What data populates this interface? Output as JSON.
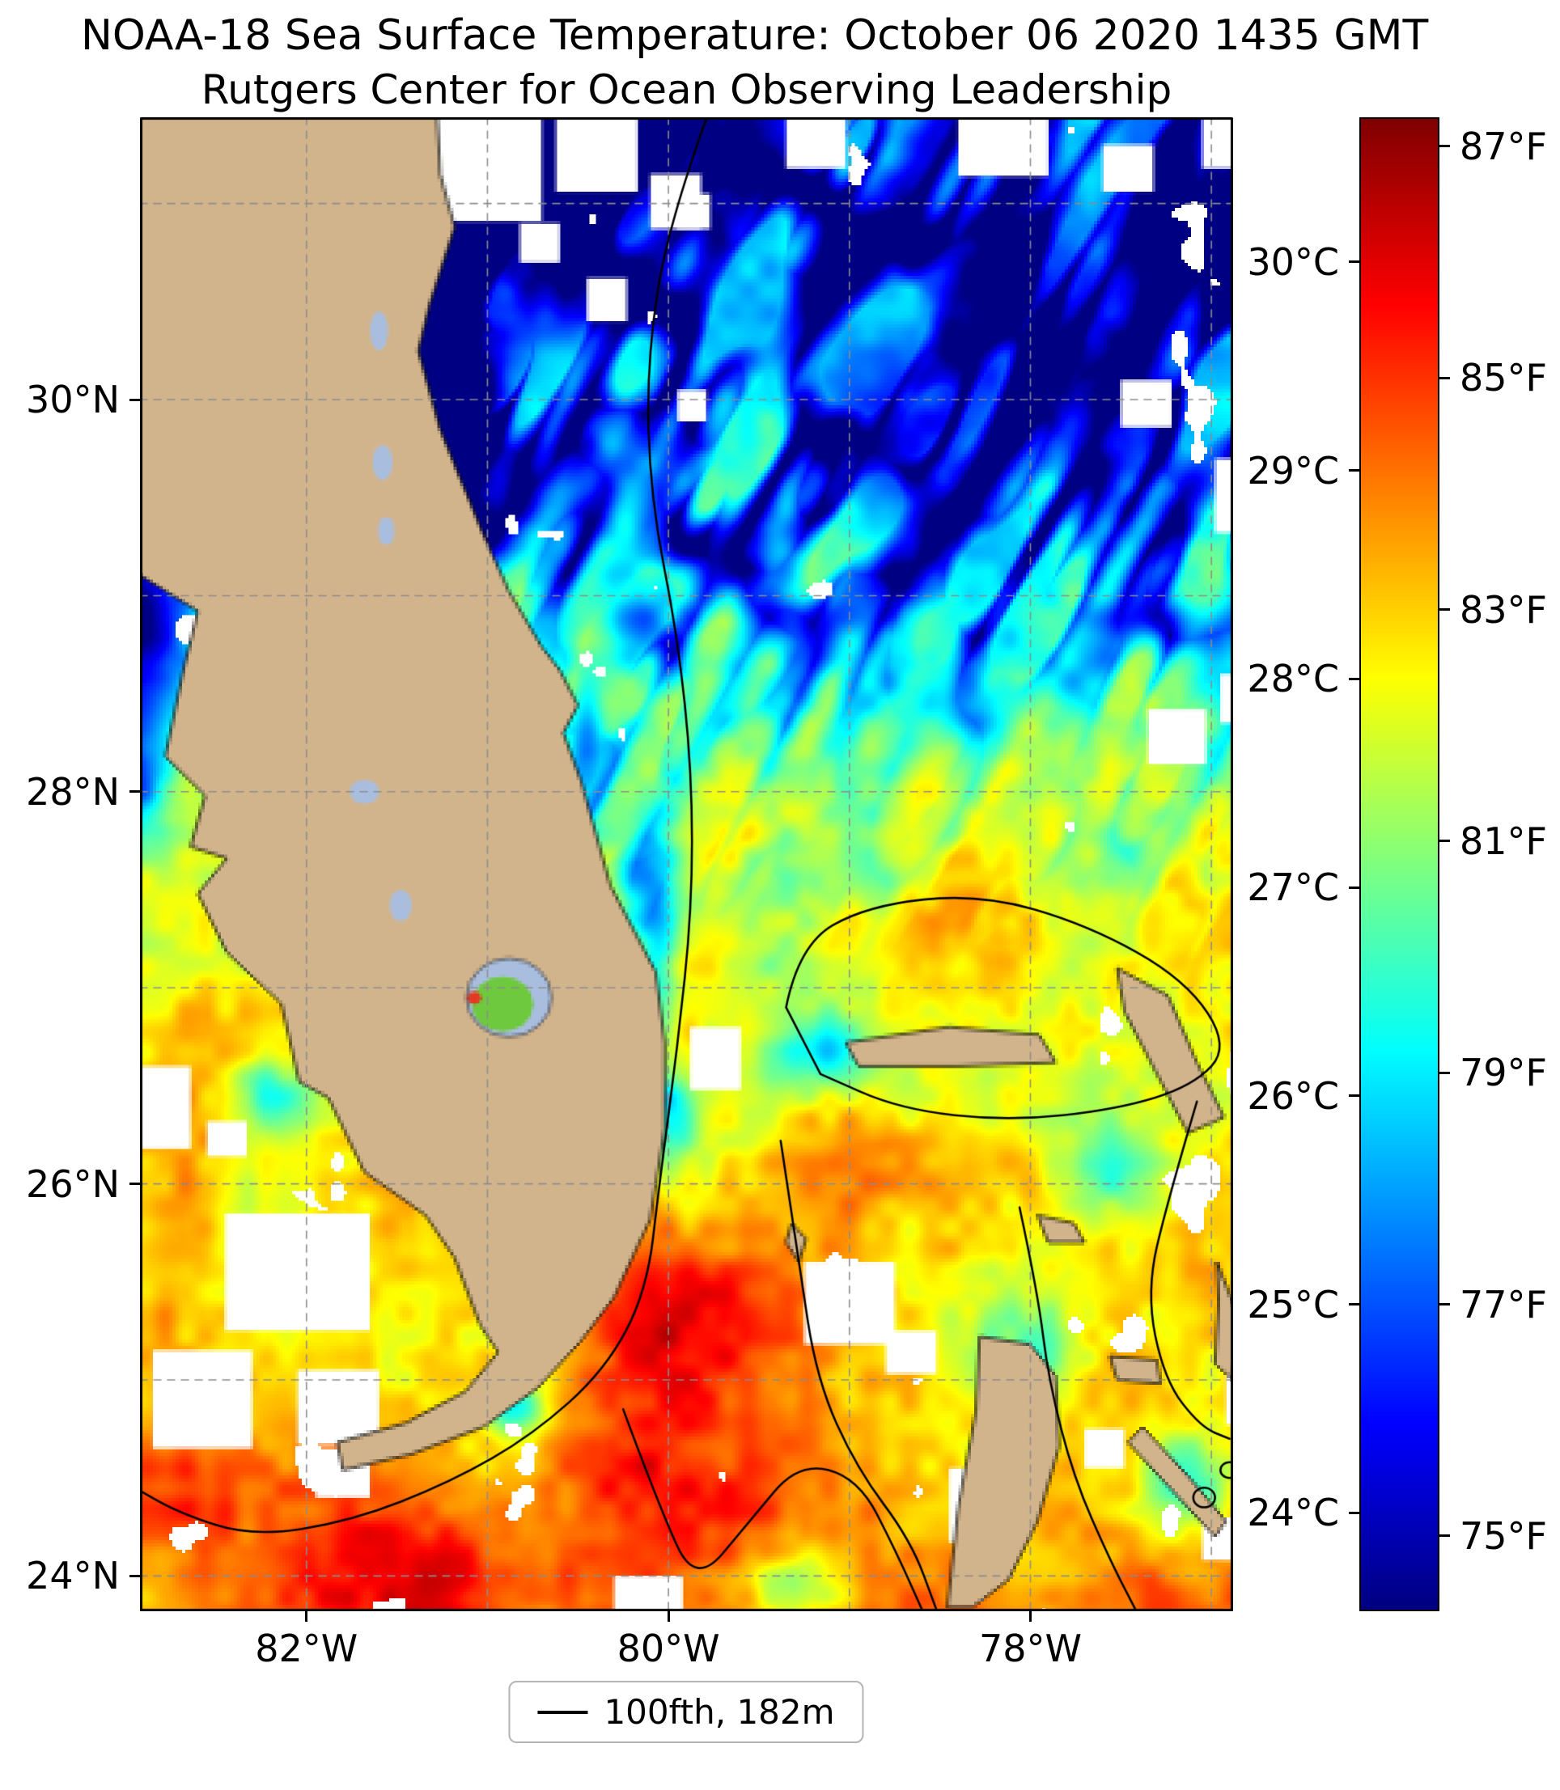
{
  "header": {
    "title": "NOAA-18 Sea Surface Temperature: October 06 2020 1435 GMT",
    "subtitle": "Rutgers Center for Ocean Observing Leadership"
  },
  "axes": {
    "x_ticks": [
      {
        "value": -82,
        "label": "82°W"
      },
      {
        "value": -80,
        "label": "80°W"
      },
      {
        "value": -78,
        "label": "78°W"
      }
    ],
    "y_ticks": [
      {
        "value": 30,
        "label": "30°N"
      },
      {
        "value": 28,
        "label": "28°N"
      },
      {
        "value": 26,
        "label": "26°N"
      },
      {
        "value": 24,
        "label": "24°N"
      }
    ],
    "grid_lons": [
      -82,
      -81,
      -80,
      -79,
      -78,
      -77
    ],
    "grid_lats": [
      24,
      25,
      26,
      27,
      28,
      29,
      30,
      31
    ]
  },
  "colorbar": {
    "top_f": 87.25,
    "bottom_f": 74.35,
    "celsius_ticks": [
      {
        "value": 30,
        "label": "30°C"
      },
      {
        "value": 29,
        "label": "29°C"
      },
      {
        "value": 28,
        "label": "28°C"
      },
      {
        "value": 27,
        "label": "27°C"
      },
      {
        "value": 26,
        "label": "26°C"
      },
      {
        "value": 25,
        "label": "25°C"
      },
      {
        "value": 24,
        "label": "24°C"
      }
    ],
    "fahrenheit_ticks": [
      {
        "value": 87,
        "label": "87°F"
      },
      {
        "value": 85,
        "label": "85°F"
      },
      {
        "value": 83,
        "label": "83°F"
      },
      {
        "value": 81,
        "label": "81°F"
      },
      {
        "value": 79,
        "label": "79°F"
      },
      {
        "value": 77,
        "label": "77°F"
      },
      {
        "value": 75,
        "label": "75°F"
      }
    ]
  },
  "legend": {
    "label": "100fth, 182m"
  },
  "chart_data": {
    "type": "heatmap",
    "variable": "sea surface temperature",
    "colormap": "jet",
    "units": [
      "°C",
      "°F"
    ],
    "temp_range_f": [
      74.35,
      87.25
    ],
    "extent": {
      "lon_min": -82.92,
      "lon_max": -76.88,
      "lat_min": 23.82,
      "lat_max": 31.44
    },
    "field": {
      "base_f": 81.6,
      "ref_lat": 27.5,
      "south_gradient_f_per_deg": 0.62,
      "noise_amp_f": 3.0,
      "speckle_amp_f": 1.2,
      "streak_amp_f": 7.2
    },
    "features": {
      "cold_spots": [
        [
          -81.0,
          31.2,
          0.4,
          0.28,
          -8
        ],
        [
          -80.35,
          31.3,
          0.45,
          0.3,
          -7
        ],
        [
          -81.45,
          30.55,
          0.3,
          0.35,
          -7
        ],
        [
          -81.15,
          30.1,
          0.28,
          0.3,
          -5.5
        ],
        [
          -80.6,
          30.7,
          0.35,
          0.35,
          -5
        ],
        [
          -81.1,
          29.7,
          0.18,
          0.5,
          -4.5
        ],
        [
          -82.95,
          28.85,
          0.3,
          0.45,
          -6
        ],
        [
          -82.95,
          28.1,
          0.18,
          0.3,
          -4
        ],
        [
          -80.15,
          28.85,
          0.22,
          0.25,
          -4
        ],
        [
          -80.45,
          28.15,
          0.12,
          0.35,
          -3
        ],
        [
          -80.08,
          27.55,
          0.18,
          0.3,
          -3.5
        ],
        [
          -80.05,
          27.0,
          0.1,
          0.4,
          -2.5
        ],
        [
          -78.7,
          29.7,
          0.55,
          0.5,
          -3
        ],
        [
          -77.8,
          30.4,
          0.5,
          0.45,
          -3
        ],
        [
          -76.95,
          30.95,
          0.35,
          0.4,
          -4.5
        ],
        [
          -78.15,
          28.9,
          0.45,
          0.45,
          -2.5
        ],
        [
          -78.0,
          25.15,
          0.3,
          0.4,
          -3
        ],
        [
          -77.15,
          24.45,
          0.3,
          0.3,
          -3.5
        ],
        [
          -79.15,
          26.7,
          0.25,
          0.18,
          -3
        ],
        [
          -80.85,
          24.85,
          0.18,
          0.12,
          -3
        ],
        [
          -82.2,
          26.45,
          0.25,
          0.2,
          -2.5
        ],
        [
          -80.0,
          26.35,
          0.15,
          0.25,
          -3.5
        ],
        [
          -79.3,
          23.95,
          0.3,
          0.2,
          -3
        ],
        [
          -77.55,
          26.05,
          0.3,
          0.25,
          -2.5
        ]
      ],
      "warm_spots": [
        [
          -79.95,
          25.35,
          0.55,
          0.55,
          2.6
        ],
        [
          -80.1,
          24.45,
          0.5,
          0.4,
          2.4
        ],
        [
          -79.4,
          27.9,
          0.5,
          0.4,
          1.8
        ],
        [
          -78.2,
          27.35,
          0.9,
          0.5,
          1.4
        ],
        [
          -82.4,
          24.45,
          0.65,
          0.35,
          2.0
        ],
        [
          -81.3,
          24.0,
          0.7,
          0.3,
          2.2
        ],
        [
          -76.95,
          27.7,
          0.35,
          0.5,
          1.2
        ],
        [
          -82.7,
          26.1,
          0.3,
          0.5,
          1.2
        ],
        [
          -79.0,
          26.1,
          0.4,
          0.3,
          1.5
        ]
      ],
      "cloud_rects": [
        [
          -81.5,
          31.46,
          0.8,
          0.55
        ],
        [
          -80.62,
          31.46,
          0.45,
          0.4
        ],
        [
          -80.1,
          31.15,
          0.28,
          0.28
        ],
        [
          -79.35,
          31.46,
          0.33,
          0.28
        ],
        [
          -78.4,
          31.46,
          0.5,
          0.32
        ],
        [
          -77.6,
          31.3,
          0.28,
          0.24
        ],
        [
          -77.05,
          31.46,
          0.3,
          0.28
        ],
        [
          -80.45,
          30.62,
          0.22,
          0.22
        ],
        [
          -79.95,
          30.05,
          0.16,
          0.16
        ],
        [
          -77.5,
          30.1,
          0.28,
          0.24
        ],
        [
          -76.98,
          29.7,
          0.22,
          0.38
        ],
        [
          -77.35,
          28.42,
          0.32,
          0.28
        ],
        [
          -76.95,
          28.6,
          0.18,
          0.25
        ],
        [
          -79.88,
          26.8,
          0.28,
          0.32
        ],
        [
          -79.25,
          25.6,
          0.5,
          0.42
        ],
        [
          -78.8,
          25.25,
          0.28,
          0.22
        ],
        [
          -82.45,
          25.85,
          0.8,
          0.6
        ],
        [
          -82.85,
          25.15,
          0.55,
          0.5
        ],
        [
          -82.05,
          25.05,
          0.45,
          0.38
        ],
        [
          -82.92,
          26.6,
          0.28,
          0.42
        ],
        [
          -82.55,
          26.32,
          0.22,
          0.18
        ],
        [
          -78.45,
          24.55,
          0.42,
          0.38
        ],
        [
          -77.05,
          24.3,
          0.28,
          0.22
        ],
        [
          -76.92,
          25.05,
          0.18,
          0.28
        ],
        [
          -80.3,
          24.0,
          0.38,
          0.2
        ],
        [
          -79.95,
          31.05,
          0.18,
          0.18
        ],
        [
          -80.82,
          30.9,
          0.22,
          0.2
        ],
        [
          -77.7,
          24.75,
          0.22,
          0.2
        ],
        [
          -80.5,
          26.75,
          0.18,
          0.2
        ],
        [
          -80.35,
          26.1,
          0.15,
          0.15
        ],
        [
          -81.95,
          24.65,
          0.3,
          0.25
        ]
      ],
      "cloud_noise_threshold": 0.81,
      "cloud_noise_south_bias": 0.09
    },
    "land": {
      "color": "#d2b48c",
      "lake_color": "#a9bede",
      "florida": [
        [
          -82.95,
          31.5
        ],
        [
          -81.28,
          31.5
        ],
        [
          -81.26,
          31.15
        ],
        [
          -81.18,
          30.88
        ],
        [
          -81.32,
          30.48
        ],
        [
          -81.38,
          30.25
        ],
        [
          -81.26,
          29.85
        ],
        [
          -81.03,
          29.33
        ],
        [
          -80.88,
          29.02
        ],
        [
          -80.7,
          28.74
        ],
        [
          -80.6,
          28.62
        ],
        [
          -80.5,
          28.44
        ],
        [
          -80.58,
          28.3
        ],
        [
          -80.48,
          28.05
        ],
        [
          -80.32,
          27.52
        ],
        [
          -80.07,
          27.08
        ],
        [
          -80.02,
          26.72
        ],
        [
          -80.02,
          26.28
        ],
        [
          -80.1,
          25.82
        ],
        [
          -80.3,
          25.42
        ],
        [
          -80.48,
          25.2
        ],
        [
          -80.72,
          24.96
        ],
        [
          -81.02,
          24.76
        ],
        [
          -81.42,
          24.62
        ],
        [
          -81.8,
          24.54
        ],
        [
          -81.83,
          24.68
        ],
        [
          -81.45,
          24.78
        ],
        [
          -81.12,
          24.94
        ],
        [
          -80.94,
          25.14
        ],
        [
          -81.04,
          25.28
        ],
        [
          -81.18,
          25.62
        ],
        [
          -81.34,
          25.84
        ],
        [
          -81.68,
          26.06
        ],
        [
          -81.88,
          26.44
        ],
        [
          -82.04,
          26.52
        ],
        [
          -82.14,
          26.92
        ],
        [
          -82.44,
          27.18
        ],
        [
          -82.6,
          27.48
        ],
        [
          -82.44,
          27.66
        ],
        [
          -82.64,
          27.72
        ],
        [
          -82.56,
          27.98
        ],
        [
          -82.78,
          28.18
        ],
        [
          -82.68,
          28.62
        ],
        [
          -82.6,
          28.92
        ],
        [
          -82.95,
          29.12
        ]
      ],
      "islands": [
        [
          [
            -79.02,
            26.72
          ],
          [
            -78.45,
            26.8
          ],
          [
            -77.95,
            26.76
          ],
          [
            -77.86,
            26.62
          ],
          [
            -78.4,
            26.6
          ],
          [
            -78.95,
            26.6
          ]
        ],
        [
          [
            -77.52,
            27.1
          ],
          [
            -77.24,
            26.96
          ],
          [
            -77.08,
            26.62
          ],
          [
            -76.93,
            26.34
          ],
          [
            -77.13,
            26.26
          ],
          [
            -77.3,
            26.56
          ],
          [
            -77.48,
            26.88
          ]
        ],
        [
          [
            -77.96,
            25.84
          ],
          [
            -77.76,
            25.8
          ],
          [
            -77.7,
            25.7
          ],
          [
            -77.9,
            25.7
          ]
        ],
        [
          [
            -79.32,
            25.8
          ],
          [
            -79.24,
            25.72
          ],
          [
            -79.28,
            25.6
          ],
          [
            -79.35,
            25.7
          ]
        ],
        [
          [
            -77.56,
            25.12
          ],
          [
            -77.3,
            25.1
          ],
          [
            -77.28,
            24.98
          ],
          [
            -77.52,
            25.0
          ]
        ],
        [
          [
            -76.97,
            25.6
          ],
          [
            -76.85,
            25.32
          ],
          [
            -76.88,
            25.0
          ],
          [
            -76.98,
            25.08
          ],
          [
            -76.96,
            25.4
          ]
        ],
        [
          [
            -78.28,
            25.22
          ],
          [
            -78.0,
            25.18
          ],
          [
            -77.86,
            25.02
          ],
          [
            -77.84,
            24.66
          ],
          [
            -77.96,
            24.28
          ],
          [
            -78.12,
            23.98
          ],
          [
            -78.32,
            23.84
          ],
          [
            -78.46,
            23.84
          ],
          [
            -78.4,
            24.34
          ],
          [
            -78.3,
            24.84
          ]
        ],
        [
          [
            -77.46,
            24.68
          ],
          [
            -77.18,
            24.4
          ],
          [
            -76.98,
            24.2
          ],
          [
            -76.92,
            24.28
          ],
          [
            -77.12,
            24.5
          ],
          [
            -77.38,
            24.76
          ]
        ]
      ],
      "lakes": [
        [
          -81.6,
          30.35,
          0.05,
          0.1
        ],
        [
          -81.58,
          29.68,
          0.055,
          0.09
        ],
        [
          -81.56,
          29.33,
          0.045,
          0.07
        ],
        [
          -81.68,
          28.0,
          0.08,
          0.06
        ],
        [
          -81.48,
          27.42,
          0.06,
          0.08
        ]
      ],
      "okeechobee": {
        "lon": -80.88,
        "lat": 26.95,
        "rx": 0.235,
        "ry": 0.2
      }
    },
    "contours": [
      {
        "points": [
          [
            -79.78,
            31.46
          ],
          [
            -80.0,
            30.9
          ],
          [
            -80.12,
            30.2
          ],
          [
            -80.1,
            29.5
          ],
          [
            -79.95,
            28.8
          ],
          [
            -79.87,
            28.1
          ],
          [
            -79.87,
            27.4
          ],
          [
            -79.95,
            26.7
          ],
          [
            -80.05,
            26.0
          ],
          [
            -80.12,
            25.45
          ],
          [
            -80.35,
            25.05
          ],
          [
            -80.75,
            24.72
          ],
          [
            -81.2,
            24.48
          ],
          [
            -81.75,
            24.28
          ],
          [
            -82.3,
            24.2
          ],
          [
            -82.7,
            24.32
          ],
          [
            -82.95,
            24.45
          ]
        ],
        "closed": false
      },
      {
        "points": [
          [
            -80.25,
            24.85
          ],
          [
            -80.05,
            24.35
          ],
          [
            -79.85,
            23.95
          ],
          [
            -79.55,
            24.28
          ],
          [
            -79.28,
            24.58
          ],
          [
            -78.95,
            24.5
          ],
          [
            -78.74,
            24.12
          ],
          [
            -78.6,
            23.83
          ]
        ],
        "closed": false
      },
      {
        "points": [
          [
            -79.35,
            26.9
          ],
          [
            -79.28,
            27.22
          ],
          [
            -78.9,
            27.42
          ],
          [
            -78.28,
            27.48
          ],
          [
            -77.68,
            27.32
          ],
          [
            -77.14,
            27.04
          ],
          [
            -76.9,
            26.7
          ],
          [
            -77.1,
            26.5
          ],
          [
            -77.52,
            26.38
          ],
          [
            -78.12,
            26.32
          ],
          [
            -78.72,
            26.38
          ],
          [
            -79.16,
            26.56
          ]
        ],
        "closed": true
      },
      {
        "points": [
          [
            -79.38,
            26.22
          ],
          [
            -79.28,
            25.6
          ],
          [
            -79.18,
            25.0
          ],
          [
            -78.96,
            24.55
          ],
          [
            -78.66,
            24.18
          ],
          [
            -78.52,
            23.83
          ]
        ],
        "closed": false
      },
      {
        "points": [
          [
            -78.06,
            25.88
          ],
          [
            -77.96,
            25.45
          ],
          [
            -77.9,
            25.0
          ],
          [
            -77.76,
            24.5
          ],
          [
            -77.56,
            24.08
          ],
          [
            -77.42,
            23.83
          ]
        ],
        "closed": false
      },
      {
        "points": [
          [
            -77.08,
            26.42
          ],
          [
            -77.24,
            25.92
          ],
          [
            -77.36,
            25.45
          ],
          [
            -77.26,
            25.0
          ],
          [
            -77.06,
            24.76
          ],
          [
            -76.9,
            24.7
          ]
        ],
        "closed": false
      },
      {
        "circle": [
          -77.04,
          24.4,
          0.06,
          0.05
        ]
      },
      {
        "circle": [
          -76.9,
          24.54,
          0.05,
          0.04
        ]
      }
    ]
  }
}
